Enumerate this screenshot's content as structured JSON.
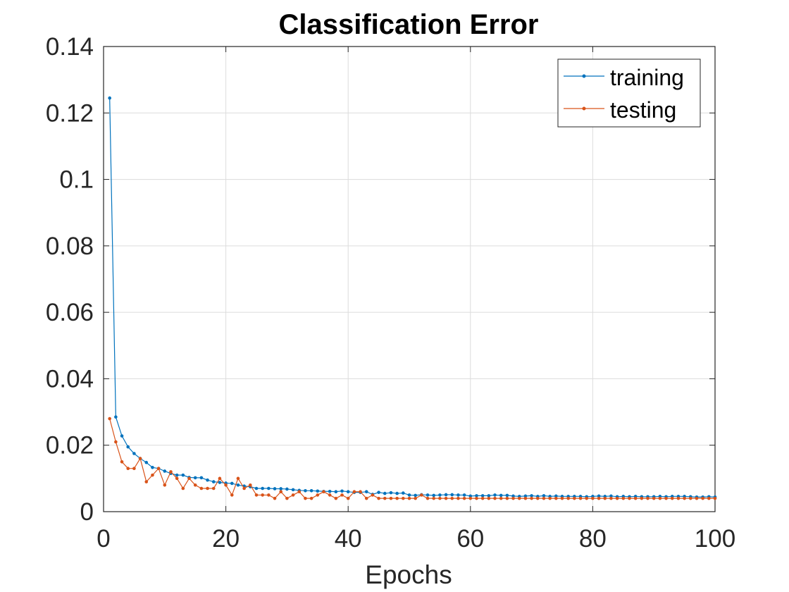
{
  "chart_data": {
    "type": "line",
    "title": "Classification Error",
    "xlabel": "Epochs",
    "ylabel": "",
    "xlim": [
      0,
      100
    ],
    "ylim": [
      0,
      0.14
    ],
    "xticks": [
      0,
      20,
      40,
      60,
      80,
      100
    ],
    "xtick_labels": [
      "0",
      "20",
      "40",
      "60",
      "80",
      "100"
    ],
    "yticks": [
      0,
      0.02,
      0.04,
      0.06,
      0.08,
      0.1,
      0.12,
      0.14
    ],
    "ytick_labels": [
      "0",
      "0.02",
      "0.04",
      "0.06",
      "0.08",
      "0.1",
      "0.12",
      "0.14"
    ],
    "grid": true,
    "legend_position": "top-right",
    "series": [
      {
        "name": "training",
        "color": "#0072BD",
        "marker": "dot",
        "x": [
          1,
          2,
          3,
          4,
          5,
          6,
          7,
          8,
          9,
          10,
          11,
          12,
          13,
          14,
          15,
          16,
          17,
          18,
          19,
          20,
          21,
          22,
          23,
          24,
          25,
          26,
          27,
          28,
          29,
          30,
          31,
          32,
          33,
          34,
          35,
          36,
          37,
          38,
          39,
          40,
          41,
          42,
          43,
          44,
          45,
          46,
          47,
          48,
          49,
          50,
          51,
          52,
          53,
          54,
          55,
          56,
          57,
          58,
          59,
          60,
          61,
          62,
          63,
          64,
          65,
          66,
          67,
          68,
          69,
          70,
          71,
          72,
          73,
          74,
          75,
          76,
          77,
          78,
          79,
          80,
          81,
          82,
          83,
          84,
          85,
          86,
          87,
          88,
          89,
          90,
          91,
          92,
          93,
          94,
          95,
          96,
          97,
          98,
          99,
          100
        ],
        "values": [
          0.1245,
          0.0285,
          0.0228,
          0.0195,
          0.0175,
          0.016,
          0.0148,
          0.0133,
          0.013,
          0.0122,
          0.0115,
          0.011,
          0.011,
          0.0103,
          0.0102,
          0.0102,
          0.0095,
          0.009,
          0.0088,
          0.0086,
          0.0085,
          0.008,
          0.0077,
          0.0075,
          0.007,
          0.007,
          0.007,
          0.0069,
          0.0069,
          0.0068,
          0.0066,
          0.0064,
          0.0063,
          0.0063,
          0.0062,
          0.0061,
          0.0061,
          0.006,
          0.0062,
          0.006,
          0.0058,
          0.0058,
          0.006,
          0.0052,
          0.0058,
          0.0055,
          0.0057,
          0.0055,
          0.0056,
          0.005,
          0.0049,
          0.0051,
          0.005,
          0.0049,
          0.005,
          0.0051,
          0.0051,
          0.005,
          0.005,
          0.0047,
          0.0048,
          0.0048,
          0.0048,
          0.005,
          0.0049,
          0.0049,
          0.0047,
          0.0046,
          0.0047,
          0.0048,
          0.0046,
          0.0048,
          0.0046,
          0.0047,
          0.0046,
          0.0046,
          0.0046,
          0.0046,
          0.0045,
          0.0046,
          0.0047,
          0.0046,
          0.0047,
          0.0045,
          0.0046,
          0.0045,
          0.0046,
          0.0045,
          0.0045,
          0.0045,
          0.0046,
          0.0045,
          0.0046,
          0.0046,
          0.0046,
          0.0045,
          0.0044,
          0.0044,
          0.0045,
          0.0044
        ]
      },
      {
        "name": "testing",
        "color": "#D95319",
        "marker": "dot",
        "x": [
          1,
          2,
          3,
          4,
          5,
          6,
          7,
          8,
          9,
          10,
          11,
          12,
          13,
          14,
          15,
          16,
          17,
          18,
          19,
          20,
          21,
          22,
          23,
          24,
          25,
          26,
          27,
          28,
          29,
          30,
          31,
          32,
          33,
          34,
          35,
          36,
          37,
          38,
          39,
          40,
          41,
          42,
          43,
          44,
          45,
          46,
          47,
          48,
          49,
          50,
          51,
          52,
          53,
          54,
          55,
          56,
          57,
          58,
          59,
          60,
          61,
          62,
          63,
          64,
          65,
          66,
          67,
          68,
          69,
          70,
          71,
          72,
          73,
          74,
          75,
          76,
          77,
          78,
          79,
          80,
          81,
          82,
          83,
          84,
          85,
          86,
          87,
          88,
          89,
          90,
          91,
          92,
          93,
          94,
          95,
          96,
          97,
          98,
          99,
          100
        ],
        "values": [
          0.028,
          0.021,
          0.015,
          0.013,
          0.013,
          0.016,
          0.009,
          0.011,
          0.013,
          0.008,
          0.012,
          0.01,
          0.007,
          0.01,
          0.008,
          0.007,
          0.007,
          0.007,
          0.01,
          0.008,
          0.005,
          0.01,
          0.007,
          0.008,
          0.005,
          0.005,
          0.005,
          0.004,
          0.006,
          0.004,
          0.005,
          0.006,
          0.004,
          0.004,
          0.005,
          0.006,
          0.005,
          0.004,
          0.005,
          0.004,
          0.006,
          0.006,
          0.004,
          0.005,
          0.004,
          0.004,
          0.004,
          0.004,
          0.004,
          0.004,
          0.004,
          0.005,
          0.004,
          0.004,
          0.004,
          0.004,
          0.004,
          0.004,
          0.004,
          0.004,
          0.004,
          0.004,
          0.004,
          0.004,
          0.004,
          0.004,
          0.004,
          0.004,
          0.004,
          0.004,
          0.004,
          0.004,
          0.004,
          0.004,
          0.004,
          0.004,
          0.004,
          0.004,
          0.004,
          0.004,
          0.004,
          0.004,
          0.004,
          0.004,
          0.004,
          0.004,
          0.004,
          0.004,
          0.004,
          0.004,
          0.004,
          0.004,
          0.004,
          0.004,
          0.004,
          0.004,
          0.004,
          0.004,
          0.004,
          0.004
        ]
      }
    ]
  }
}
